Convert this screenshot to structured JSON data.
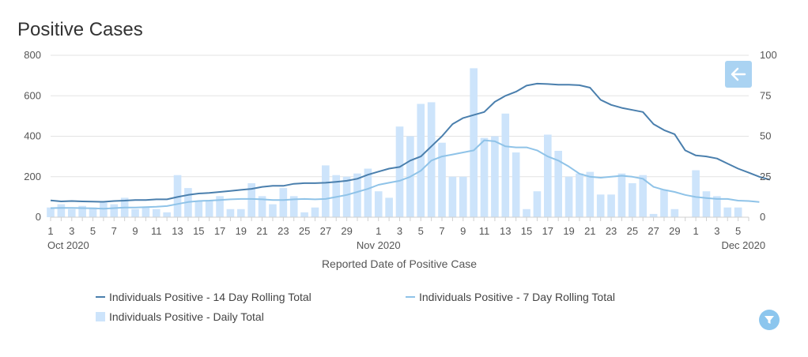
{
  "chart_data": {
    "type": "bar",
    "title": "Positive Cases",
    "xlabel": "Reported Date of Positive Case",
    "ylabel_left": "",
    "ylabel_right": "",
    "ylim_left": [
      0,
      800
    ],
    "ylim_right": [
      0,
      100
    ],
    "yticks_left": [
      "0",
      "200",
      "400",
      "600",
      "800"
    ],
    "yticks_right": [
      "0",
      "25",
      "50",
      "75",
      "100"
    ],
    "grid": true,
    "legend_position": "bottom",
    "x_start": "2020-10-01",
    "x_end": "2020-12-06",
    "x_ticks": [
      {
        "day": 1,
        "label": "1"
      },
      {
        "day": 3,
        "label": "3"
      },
      {
        "day": 5,
        "label": "5"
      },
      {
        "day": 7,
        "label": "7"
      },
      {
        "day": 9,
        "label": "9"
      },
      {
        "day": 11,
        "label": "11"
      },
      {
        "day": 13,
        "label": "13"
      },
      {
        "day": 15,
        "label": "15"
      },
      {
        "day": 17,
        "label": "17"
      },
      {
        "day": 19,
        "label": "19"
      },
      {
        "day": 21,
        "label": "21"
      },
      {
        "day": 23,
        "label": "23"
      },
      {
        "day": 25,
        "label": "25"
      },
      {
        "day": 27,
        "label": "27"
      },
      {
        "day": 29,
        "label": "29"
      },
      {
        "day": 32,
        "label": "1"
      },
      {
        "day": 34,
        "label": "3"
      },
      {
        "day": 36,
        "label": "5"
      },
      {
        "day": 38,
        "label": "7"
      },
      {
        "day": 40,
        "label": "9"
      },
      {
        "day": 42,
        "label": "11"
      },
      {
        "day": 44,
        "label": "13"
      },
      {
        "day": 46,
        "label": "15"
      },
      {
        "day": 48,
        "label": "17"
      },
      {
        "day": 50,
        "label": "19"
      },
      {
        "day": 52,
        "label": "21"
      },
      {
        "day": 54,
        "label": "23"
      },
      {
        "day": 56,
        "label": "25"
      },
      {
        "day": 58,
        "label": "27"
      },
      {
        "day": 60,
        "label": "29"
      },
      {
        "day": 62,
        "label": "1"
      },
      {
        "day": 64,
        "label": "3"
      },
      {
        "day": 66,
        "label": "5"
      }
    ],
    "month_labels": [
      {
        "day": 1,
        "label": "Oct 2020"
      },
      {
        "day": 32,
        "label": "Nov 2020"
      },
      {
        "day": 62,
        "label": "Dec 2020"
      }
    ],
    "series": [
      {
        "name": "Individuals Positive - 14 Day Rolling Total",
        "type": "line",
        "axis": "left",
        "color": "#4a7fad",
        "values": [
          83,
          78,
          80,
          78,
          77,
          76,
          80,
          82,
          85,
          85,
          88,
          88,
          100,
          110,
          117,
          120,
          125,
          130,
          135,
          140,
          150,
          155,
          155,
          165,
          168,
          168,
          170,
          175,
          180,
          190,
          210,
          225,
          240,
          248,
          280,
          300,
          350,
          400,
          460,
          490,
          505,
          520,
          570,
          600,
          620,
          650,
          660,
          658,
          655,
          655,
          652,
          640,
          580,
          555,
          540,
          530,
          520,
          460,
          430,
          410,
          330,
          305,
          300,
          290,
          265,
          240,
          220,
          200,
          185
        ]
      },
      {
        "name": "Individuals Positive - 7 Day Rolling Total",
        "type": "line",
        "axis": "left",
        "color": "#8fc3e8",
        "values": [
          45,
          46,
          46,
          45,
          44,
          42,
          45,
          48,
          48,
          50,
          52,
          55,
          65,
          75,
          80,
          82,
          85,
          88,
          90,
          90,
          88,
          85,
          85,
          88,
          90,
          88,
          90,
          100,
          110,
          125,
          140,
          160,
          170,
          180,
          200,
          230,
          280,
          300,
          310,
          320,
          330,
          380,
          375,
          350,
          345,
          345,
          330,
          300,
          280,
          250,
          215,
          200,
          195,
          200,
          205,
          200,
          190,
          150,
          135,
          125,
          110,
          100,
          95,
          90,
          90,
          82,
          80,
          75
        ]
      },
      {
        "name": "Individuals Positive - Daily Total",
        "type": "bar",
        "axis": "right",
        "color": "#cde4fb",
        "values": [
          6,
          8,
          5,
          7,
          6,
          9,
          8,
          12,
          5,
          6,
          5,
          3,
          26,
          18,
          10,
          10,
          13,
          5,
          5,
          21,
          13,
          8,
          18,
          13,
          3,
          6,
          32,
          26,
          25,
          27,
          30,
          16,
          12,
          56,
          50,
          70,
          71,
          46,
          25,
          25,
          92,
          49,
          50,
          64,
          40,
          5,
          16,
          51,
          41,
          25,
          27,
          28,
          14,
          14,
          27,
          21,
          26,
          2,
          17,
          5,
          0,
          29,
          16,
          13,
          6,
          6,
          0
        ]
      }
    ]
  },
  "legend": {
    "item1": "Individuals Positive - 14 Day Rolling Total",
    "item2": "Individuals Positive - 7 Day Rolling Total",
    "item3": "Individuals Positive - Daily Total"
  },
  "controls": {
    "back_icon": "arrow-left-icon",
    "filter_icon": "filter-icon",
    "accent_color": "#aad3f2"
  }
}
